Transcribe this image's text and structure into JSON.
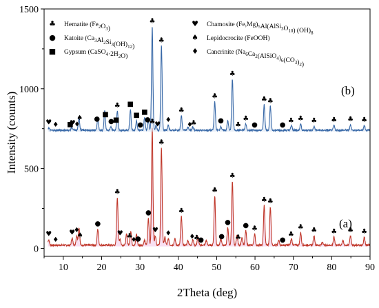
{
  "chart_data": {
    "type": "line",
    "xlabel": "2Theta (deg)",
    "ylabel": "Intensity (counts)",
    "xlim": [
      5,
      90
    ],
    "ylim": [
      -50,
      1500
    ],
    "xticks": [
      10,
      20,
      30,
      40,
      50,
      60,
      70,
      80,
      90
    ],
    "yticks": [
      0,
      500,
      1000,
      1500
    ],
    "legend": [
      {
        "symbol": "♣",
        "name": "Hematite (Fe2O3)",
        "label": "Hematite (Fe",
        "sub1": "2",
        "mid1": "O",
        "sub2": "3",
        "tail": ")"
      },
      {
        "symbol": "♥",
        "name": "Chamosite (Fe,Mg)5Al(AlSi3O10)(OH)8",
        "label": "Chamosite (Fe,Mg)",
        "sub1": "5",
        "mid1": "Al(AlSi",
        "sub2": "3",
        "mid2": "O",
        "sub3": "10",
        "mid3": ") (OH)",
        "sub4": "8"
      },
      {
        "symbol": "●",
        "name": "Katoite (Ca3Al2Si3(OH)12)",
        "label": "Katoite (Ca",
        "sub1": "3",
        "mid1": "Al",
        "sub2": "2",
        "mid2": "Si",
        "sub3": "3",
        "mid3": "(OH)",
        "sub4": "12",
        "tail": ")"
      },
      {
        "symbol": "♠",
        "name": "Lepidocrocite (FeOOH)",
        "label": "Lepidocrocite (FeOOH)"
      },
      {
        "symbol": "■",
        "name": "Gypsum (CaSO4·2H2O)",
        "label": "Gypsum (CaSO",
        "sub1": "4",
        "mid1": "·2H",
        "sub2": "2",
        "mid2": "O)"
      },
      {
        "symbol": "♦",
        "name": "Cancrinite (Na6Ca2(AlSiO4)6(CO3)2)",
        "label": "Cancrinite (Na",
        "sub1": "6",
        "mid1": "Ca",
        "sub2": "2",
        "mid2": "(AlSiO",
        "sub3": "4",
        "mid3": ")",
        "sub4": "6",
        "mid4": "(CO",
        "sub5": "3",
        "mid5": ")",
        "sub6": "2",
        "tail": ")"
      }
    ],
    "series": [
      {
        "panel": "(a)",
        "color": "#c0392b",
        "fill": "#f3c6e8",
        "baseline": 20,
        "peaks": [
          [
            6.2,
            35
          ],
          [
            12.3,
            45
          ],
          [
            13.5,
            60
          ],
          [
            14.1,
            110
          ],
          [
            19.0,
            100
          ],
          [
            24.1,
            300
          ],
          [
            24.8,
            40
          ],
          [
            26.5,
            70
          ],
          [
            27.6,
            90
          ],
          [
            29.1,
            70
          ],
          [
            31.2,
            30
          ],
          [
            32.2,
            170
          ],
          [
            33.2,
            740
          ],
          [
            34.0,
            60
          ],
          [
            35.6,
            610
          ],
          [
            36.5,
            50
          ],
          [
            37.4,
            40
          ],
          [
            39.1,
            40
          ],
          [
            40.8,
            180
          ],
          [
            42.5,
            30
          ],
          [
            43.8,
            35
          ],
          [
            45.1,
            50
          ],
          [
            47.3,
            30
          ],
          [
            49.5,
            310
          ],
          [
            51.1,
            40
          ],
          [
            52.9,
            110
          ],
          [
            54.1,
            400
          ],
          [
            55.3,
            60
          ],
          [
            56.6,
            50
          ],
          [
            57.6,
            90
          ],
          [
            59.9,
            70
          ],
          [
            62.4,
            250
          ],
          [
            64.0,
            240
          ],
          [
            66.2,
            30
          ],
          [
            69.5,
            40
          ],
          [
            71.9,
            80
          ],
          [
            75.4,
            60
          ],
          [
            77.6,
            20
          ],
          [
            80.6,
            50
          ],
          [
            82.9,
            30
          ],
          [
            84.9,
            60
          ],
          [
            88.5,
            50
          ]
        ],
        "markers": [
          [
            6.2,
            "♥"
          ],
          [
            8.0,
            "♦"
          ],
          [
            12.3,
            "♥"
          ],
          [
            13.5,
            "♦"
          ],
          [
            14.4,
            "♠"
          ],
          [
            19.0,
            "●"
          ],
          [
            24.1,
            "♣"
          ],
          [
            24.8,
            "♥"
          ],
          [
            27.3,
            "♣"
          ],
          [
            28.4,
            "♦"
          ],
          [
            29.5,
            "●"
          ],
          [
            32.2,
            "●"
          ],
          [
            33.2,
            "♣"
          ],
          [
            34.0,
            "♥"
          ],
          [
            35.6,
            "♣"
          ],
          [
            37.4,
            "♦"
          ],
          [
            40.8,
            "♣"
          ],
          [
            43.6,
            "♦"
          ],
          [
            44.8,
            "♣"
          ],
          [
            45.9,
            "●"
          ],
          [
            49.5,
            "♣"
          ],
          [
            51.3,
            "●"
          ],
          [
            52.9,
            "●"
          ],
          [
            54.1,
            "♣"
          ],
          [
            55.6,
            "♣"
          ],
          [
            57.6,
            "●"
          ],
          [
            59.9,
            "♣"
          ],
          [
            62.4,
            "♣"
          ],
          [
            64.0,
            "♣"
          ],
          [
            67.2,
            "●"
          ],
          [
            69.4,
            "♣"
          ],
          [
            71.9,
            "♣"
          ],
          [
            75.4,
            "♣"
          ],
          [
            80.6,
            "♣"
          ],
          [
            84.9,
            "♣"
          ],
          [
            88.5,
            "♣"
          ]
        ]
      },
      {
        "panel": "(b)",
        "color": "#3a6aa8",
        "fill": "#d6e2f2",
        "baseline": 740,
        "peaks": [
          [
            6.2,
            15
          ],
          [
            12.2,
            20
          ],
          [
            14.1,
            80
          ],
          [
            19.0,
            70
          ],
          [
            20.8,
            120
          ],
          [
            22.4,
            25
          ],
          [
            24.1,
            120
          ],
          [
            27.5,
            130
          ],
          [
            29.1,
            60
          ],
          [
            31.2,
            80
          ],
          [
            32.2,
            60
          ],
          [
            33.2,
            650
          ],
          [
            34.2,
            30
          ],
          [
            35.6,
            530
          ],
          [
            37.4,
            30
          ],
          [
            40.8,
            90
          ],
          [
            42.5,
            20
          ],
          [
            43.8,
            20
          ],
          [
            49.5,
            180
          ],
          [
            51.1,
            25
          ],
          [
            52.9,
            60
          ],
          [
            54.1,
            320
          ],
          [
            57.6,
            40
          ],
          [
            62.4,
            160
          ],
          [
            64.0,
            150
          ],
          [
            69.5,
            30
          ],
          [
            71.9,
            40
          ],
          [
            75.4,
            25
          ],
          [
            80.6,
            30
          ],
          [
            84.9,
            35
          ],
          [
            88.5,
            30
          ]
        ],
        "markers": [
          [
            6.2,
            "♥"
          ],
          [
            8.0,
            "♦"
          ],
          [
            11.8,
            "■"
          ],
          [
            12.4,
            "♥"
          ],
          [
            13.6,
            "♦"
          ],
          [
            14.3,
            "♠"
          ],
          [
            18.8,
            "●"
          ],
          [
            21.0,
            "■"
          ],
          [
            22.5,
            "●"
          ],
          [
            23.8,
            "■"
          ],
          [
            24.1,
            "♣"
          ],
          [
            27.5,
            "■"
          ],
          [
            29.1,
            "■"
          ],
          [
            30.1,
            "●"
          ],
          [
            31.2,
            "■"
          ],
          [
            32.0,
            "●"
          ],
          [
            33.2,
            "♣"
          ],
          [
            34.6,
            "♥"
          ],
          [
            35.6,
            "♣"
          ],
          [
            37.4,
            "♦"
          ],
          [
            40.8,
            "♣"
          ],
          [
            43.0,
            "♦"
          ],
          [
            44.0,
            "♣"
          ],
          [
            49.5,
            "♣"
          ],
          [
            51.1,
            "●"
          ],
          [
            54.1,
            "♣"
          ],
          [
            55.6,
            "♣"
          ],
          [
            57.6,
            "♣"
          ],
          [
            59.9,
            "●"
          ],
          [
            62.4,
            "♣"
          ],
          [
            64.0,
            "♣"
          ],
          [
            67.2,
            "●"
          ],
          [
            69.4,
            "♣"
          ],
          [
            71.9,
            "♣"
          ],
          [
            75.4,
            "♣"
          ],
          [
            80.6,
            "♣"
          ],
          [
            84.9,
            "♣"
          ],
          [
            88.5,
            "♣"
          ]
        ]
      }
    ]
  }
}
